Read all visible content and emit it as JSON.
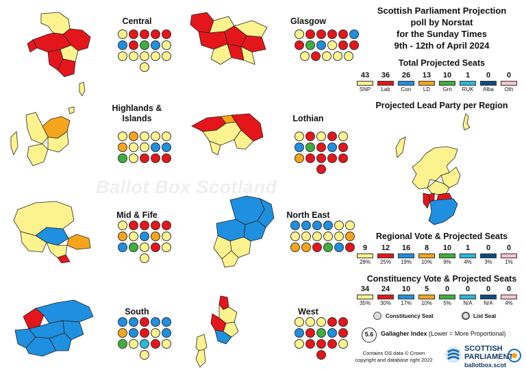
{
  "title_lines": [
    "Scottish Parliament Projection",
    "poll by Norstat",
    "for the Sunday Times",
    "9th - 12th of April 2024"
  ],
  "colors": {
    "SNP": "#fdf38e",
    "Lab": "#e4161c",
    "Con": "#1f8fdf",
    "LD": "#f5a51c",
    "Grn": "#3fae3f",
    "RUK": "#2bb7d6",
    "Alba": "#0f4c81",
    "Oth": "#f6c4cc"
  },
  "parties": [
    "SNP",
    "Lab",
    "Con",
    "LD",
    "Grn",
    "RUK",
    "Alba",
    "Oth"
  ],
  "total_seats": {
    "heading": "Total Projected Seats",
    "values": [
      "43",
      "36",
      "26",
      "13",
      "10",
      "1",
      "0",
      "0"
    ]
  },
  "lead_party": {
    "heading": "Projected Lead Party per Region"
  },
  "regional": {
    "heading": "Regional Vote & Projected Seats",
    "seats": [
      "9",
      "12",
      "16",
      "8",
      "10",
      "1",
      "0",
      "0"
    ],
    "votes": [
      "28%",
      "25%",
      "19%",
      "10%",
      "9%",
      "4%",
      "3%",
      "1%"
    ]
  },
  "constituency": {
    "heading": "Constituency Vote & Projected Seats",
    "seats": [
      "34",
      "24",
      "10",
      "5",
      "0",
      "0",
      "0",
      "0"
    ],
    "votes": [
      "35%",
      "30%",
      "17%",
      "10%",
      "5%",
      "N/A",
      "N/A",
      "4%"
    ]
  },
  "legend": {
    "constituency_seat": "Constituency Seat",
    "list_seat": "List Seat"
  },
  "gallagher": {
    "value": "5.6",
    "label": "Gallagher Index",
    "note": "(Lower = More Proportional)"
  },
  "credit_lines": [
    "Contains OS data © Crown",
    "copyright and database right 2022"
  ],
  "logo": {
    "line1": "SCOTTISH",
    "line2": "PARLIAMENT",
    "url": "ballotbox.scot",
    "side_text": "BALLOT BOX SCOTLAND"
  },
  "watermark": "Ballot Box Scotland",
  "regions": [
    {
      "name": "Central",
      "seats": [
        "SNP",
        "Lab",
        "Lab",
        "Lab",
        "Lab",
        "Con",
        "Lab",
        "Grn",
        "Con",
        "SNP",
        "SNP",
        "SNP",
        "SNP",
        "SNP",
        "SNP",
        "SNP"
      ]
    },
    {
      "name": "Glasgow",
      "seats": [
        "SNP",
        "Lab",
        "Lab",
        "Lab",
        "Lab",
        "Con",
        "Lab",
        "Grn",
        "Con",
        "SNP",
        "Lab",
        "Lab",
        "SNP",
        "Lab",
        "SNP",
        "SNP",
        "SNP"
      ]
    },
    {
      "name": "Highlands & Islands",
      "seats": [
        "SNP",
        "LD",
        "SNP",
        "SNP",
        "SNP",
        "LD",
        "SNP",
        "SNP",
        "Con",
        "Con",
        "Grn",
        "SNP",
        "Lab",
        "Lab",
        "Lab"
      ]
    },
    {
      "name": "Lothian",
      "seats": [
        "SNP",
        "Lab",
        "SNP",
        "Lab",
        "SNP",
        "Con",
        "Grn",
        "Lab",
        "Con",
        "Lab",
        "LD",
        "Lab",
        "Lab",
        "Lab",
        "Lab",
        "Lab"
      ]
    },
    {
      "name": "Mid & Fife",
      "seats": [
        "SNP",
        "Lab",
        "Lab",
        "Lab",
        "Lab",
        "LD",
        "SNP",
        "Con",
        "LD",
        "SNP",
        "Con",
        "Grn",
        "SNP",
        "Lab",
        "SNP",
        "SNP"
      ]
    },
    {
      "name": "North East",
      "seats": [
        "Con",
        "Con",
        "Con",
        "Con",
        "SNP",
        "SNP",
        "SNP",
        "SNP",
        "SNP",
        "SNP",
        "SNP",
        "LD",
        "LD",
        "LD",
        "Lab",
        "Grn",
        "Con",
        "Lab"
      ]
    },
    {
      "name": "South",
      "seats": [
        "Con",
        "Con",
        "Lab",
        "Con",
        "Con",
        "LD",
        "Con",
        "Lab",
        "SNP",
        "Con",
        "Grn",
        "SNP",
        "RUK",
        "Lab",
        "SNP",
        "SNP"
      ]
    },
    {
      "name": "West",
      "seats": [
        "SNP",
        "SNP",
        "SNP",
        "Lab",
        "Lab",
        "Con",
        "Lab",
        "Grn",
        "Con",
        "Lab",
        "SNP",
        "Lab",
        "Lab",
        "Lab",
        "SNP",
        "Lab"
      ]
    }
  ]
}
